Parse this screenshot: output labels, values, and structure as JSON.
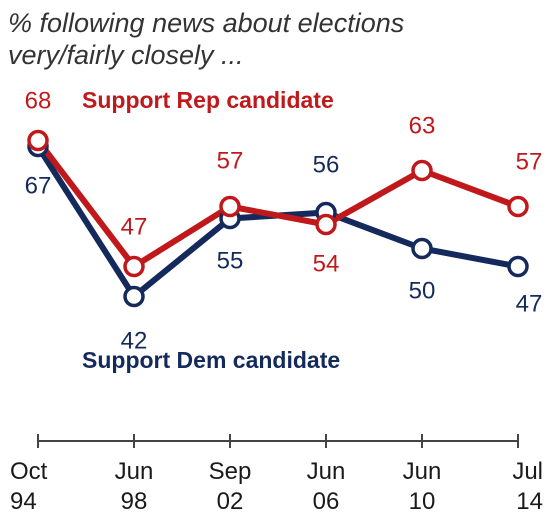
{
  "subtitle_line1": "% following news about elections",
  "subtitle_line2": "very/fairly closely ...",
  "chart_data": {
    "type": "line",
    "categories": [
      [
        "Oct",
        "94"
      ],
      [
        "Jun",
        "98"
      ],
      [
        "Sep",
        "02"
      ],
      [
        "Jun",
        "06"
      ],
      [
        "Jun",
        "10"
      ],
      [
        "Jul",
        "14"
      ]
    ],
    "series": [
      {
        "name": "Support Rep candidate",
        "values": [
          68,
          47,
          57,
          54,
          63,
          57
        ],
        "color": "#c0191b"
      },
      {
        "name": "Support Dem candidate",
        "values": [
          67,
          42,
          55,
          56,
          50,
          47
        ],
        "color": "#142a5c"
      }
    ],
    "ylim": [
      30,
      80
    ],
    "grid": false,
    "legend": "inline labels"
  }
}
